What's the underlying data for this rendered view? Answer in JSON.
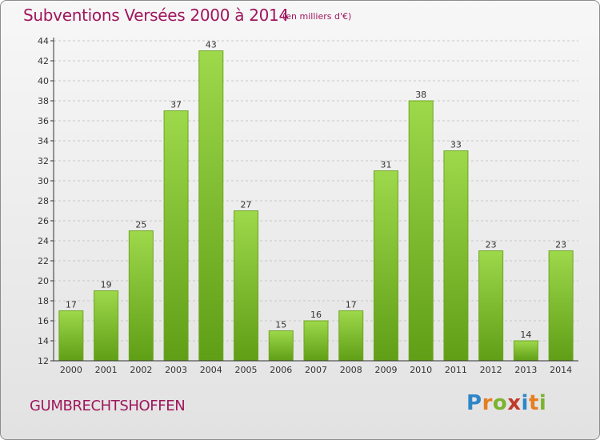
{
  "header": {
    "title": "Subventions Versées 2000 à 2014",
    "subtitle": "(en milliers d'€)"
  },
  "commune": "GUMBRECHTSHOFFEN",
  "logo": {
    "text": "Proxiti",
    "letters": [
      {
        "ch": "P",
        "color": "#2e86c8"
      },
      {
        "ch": "r",
        "color": "#e67e22"
      },
      {
        "ch": "o",
        "color": "#7bb32e"
      },
      {
        "ch": "x",
        "color": "#c0392b"
      },
      {
        "ch": "i",
        "color": "#2e86c8"
      },
      {
        "ch": "t",
        "color": "#e67e22"
      },
      {
        "ch": "i",
        "color": "#7bb32e"
      }
    ]
  },
  "colors": {
    "title": "#a0175d",
    "bar_light": "#9ed84b",
    "bar_dark": "#5f9e16",
    "bar_stroke": "#6ea522",
    "grid": "#c8c8c8",
    "axis": "#333333"
  },
  "chart_data": {
    "type": "bar",
    "categories": [
      "2000",
      "2001",
      "2002",
      "2003",
      "2004",
      "2005",
      "2006",
      "2007",
      "2008",
      "2009",
      "2010",
      "2011",
      "2012",
      "2013",
      "2014"
    ],
    "values": [
      17,
      19,
      25,
      37,
      43,
      27,
      15,
      16,
      17,
      31,
      38,
      33,
      23,
      14,
      23
    ],
    "ylim": [
      12,
      44
    ],
    "yticks": [
      12,
      14,
      16,
      18,
      20,
      22,
      24,
      26,
      28,
      30,
      32,
      34,
      36,
      38,
      40,
      42,
      44
    ],
    "grid": true,
    "data_labels": true
  }
}
